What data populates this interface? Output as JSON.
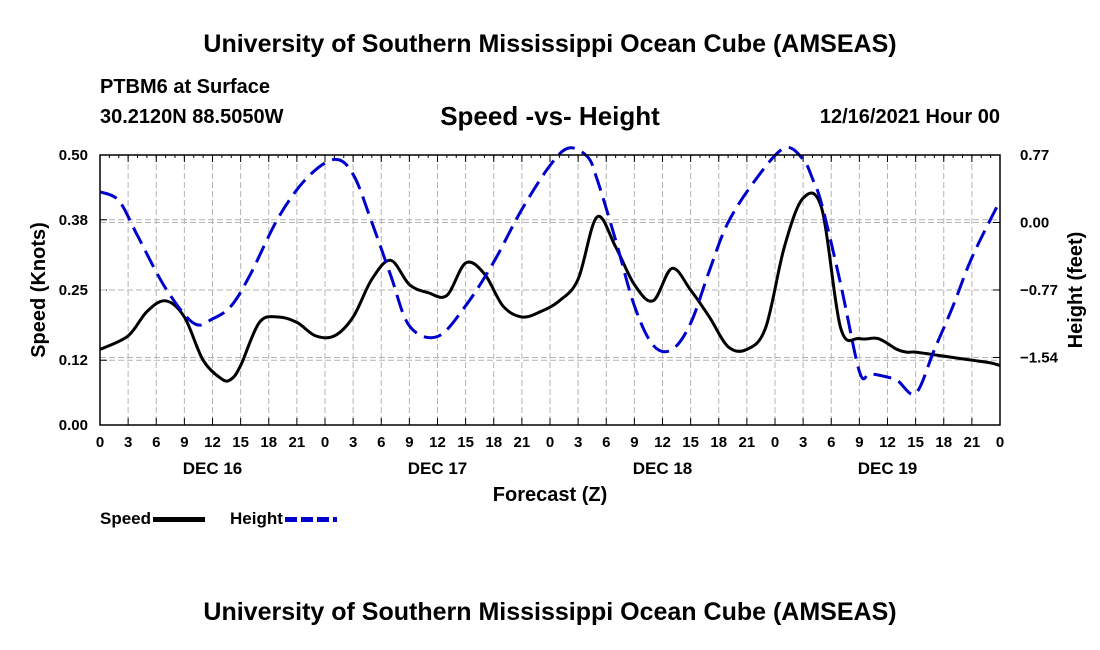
{
  "header": {
    "title": "University of Southern Mississippi Ocean Cube (AMSEAS)",
    "station": "PTBM6 at Surface",
    "coords": "30.2120N  88.5050W",
    "subtitle": "Speed -vs- Height",
    "datetime": "12/16/2021 Hour 00"
  },
  "footer": {
    "title": "University of Southern Mississippi Ocean Cube (AMSEAS)"
  },
  "legend": {
    "speed_label": "Speed",
    "height_label": "Height"
  },
  "colors": {
    "speed": "#000000",
    "height": "#0000cc",
    "grid": "#b4b4b4"
  },
  "chart_data": {
    "type": "line",
    "title": "Speed -vs- Height",
    "xlabel": "Forecast (Z)",
    "ylabel": "Speed (Knots)",
    "y2label": "Height (feet)",
    "xlim": [
      0,
      96
    ],
    "ylim": [
      0,
      0.5
    ],
    "y2lim": [
      -2.31,
      0.77
    ],
    "x_ticks": [
      0,
      3,
      6,
      9,
      12,
      15,
      18,
      21,
      24,
      27,
      30,
      33,
      36,
      39,
      42,
      45,
      48,
      51,
      54,
      57,
      60,
      63,
      66,
      69,
      72,
      75,
      78,
      81,
      84,
      87,
      90,
      93,
      96
    ],
    "x_tick_labels": [
      "0",
      "3",
      "6",
      "9",
      "12",
      "15",
      "18",
      "21",
      "0",
      "3",
      "6",
      "9",
      "12",
      "15",
      "18",
      "21",
      "0",
      "3",
      "6",
      "9",
      "12",
      "15",
      "18",
      "21",
      "0",
      "3",
      "6",
      "9",
      "12",
      "15",
      "18",
      "21",
      "0"
    ],
    "day_labels": [
      {
        "label": "DEC 16",
        "x": 12
      },
      {
        "label": "DEC 17",
        "x": 36
      },
      {
        "label": "DEC 18",
        "x": 60
      },
      {
        "label": "DEC 19",
        "x": 84
      }
    ],
    "y_ticks": [
      0.0,
      0.12,
      0.25,
      0.38,
      0.5
    ],
    "y_tick_labels": [
      "0.00",
      "0.12",
      "0.25",
      "0.38",
      "0.50"
    ],
    "y2_ticks": [
      0.77,
      0.0,
      -0.77,
      -1.54
    ],
    "y2_tick_labels": [
      "0.77",
      "0.00",
      "−0.77",
      "−1.54"
    ],
    "series": [
      {
        "name": "Speed",
        "axis": "left",
        "style": "solid",
        "x": [
          0,
          3,
          5,
          7,
          9,
          11,
          13,
          14,
          15,
          17,
          19,
          21,
          23,
          25,
          27,
          29,
          31,
          33,
          35,
          37,
          39,
          41,
          43,
          45,
          47,
          49,
          51,
          53,
          55,
          57,
          59,
          61,
          63,
          65,
          67,
          69,
          71,
          73,
          75,
          77,
          79,
          81,
          83,
          85,
          86,
          87,
          89,
          91,
          93,
          95,
          96
        ],
        "values": [
          0.14,
          0.165,
          0.21,
          0.23,
          0.2,
          0.12,
          0.085,
          0.085,
          0.11,
          0.19,
          0.2,
          0.19,
          0.165,
          0.165,
          0.2,
          0.27,
          0.305,
          0.26,
          0.245,
          0.24,
          0.3,
          0.28,
          0.22,
          0.2,
          0.21,
          0.23,
          0.27,
          0.385,
          0.33,
          0.26,
          0.23,
          0.29,
          0.25,
          0.2,
          0.145,
          0.14,
          0.18,
          0.33,
          0.42,
          0.4,
          0.18,
          0.16,
          0.16,
          0.14,
          0.135,
          0.135,
          0.13,
          0.125,
          0.12,
          0.115,
          0.11
        ]
      },
      {
        "name": "Height",
        "axis": "right",
        "style": "dashed",
        "x": [
          0,
          2,
          4,
          7,
          10,
          12,
          14,
          16,
          19,
          22,
          25,
          27,
          29,
          31,
          33,
          36,
          39,
          42,
          45,
          48,
          50,
          52,
          53,
          55,
          57,
          59,
          61,
          63,
          65,
          67,
          70,
          73,
          75,
          76,
          77,
          79,
          81,
          82,
          83,
          85,
          87,
          89,
          91,
          93,
          96
        ],
        "values": [
          0.35,
          0.25,
          -0.15,
          -0.75,
          -1.15,
          -1.1,
          -0.95,
          -0.6,
          0.05,
          0.5,
          0.72,
          0.55,
          0.0,
          -0.6,
          -1.18,
          -1.3,
          -0.95,
          -0.45,
          0.15,
          0.65,
          0.85,
          0.75,
          0.5,
          -0.2,
          -0.95,
          -1.4,
          -1.45,
          -1.15,
          -0.55,
          0.0,
          0.5,
          0.85,
          0.72,
          0.5,
          0.2,
          -0.7,
          -1.7,
          -1.73,
          -1.74,
          -1.8,
          -1.95,
          -1.45,
          -0.95,
          -0.4,
          0.25
        ]
      }
    ],
    "grid": true,
    "legend_position": "bottom-left"
  }
}
